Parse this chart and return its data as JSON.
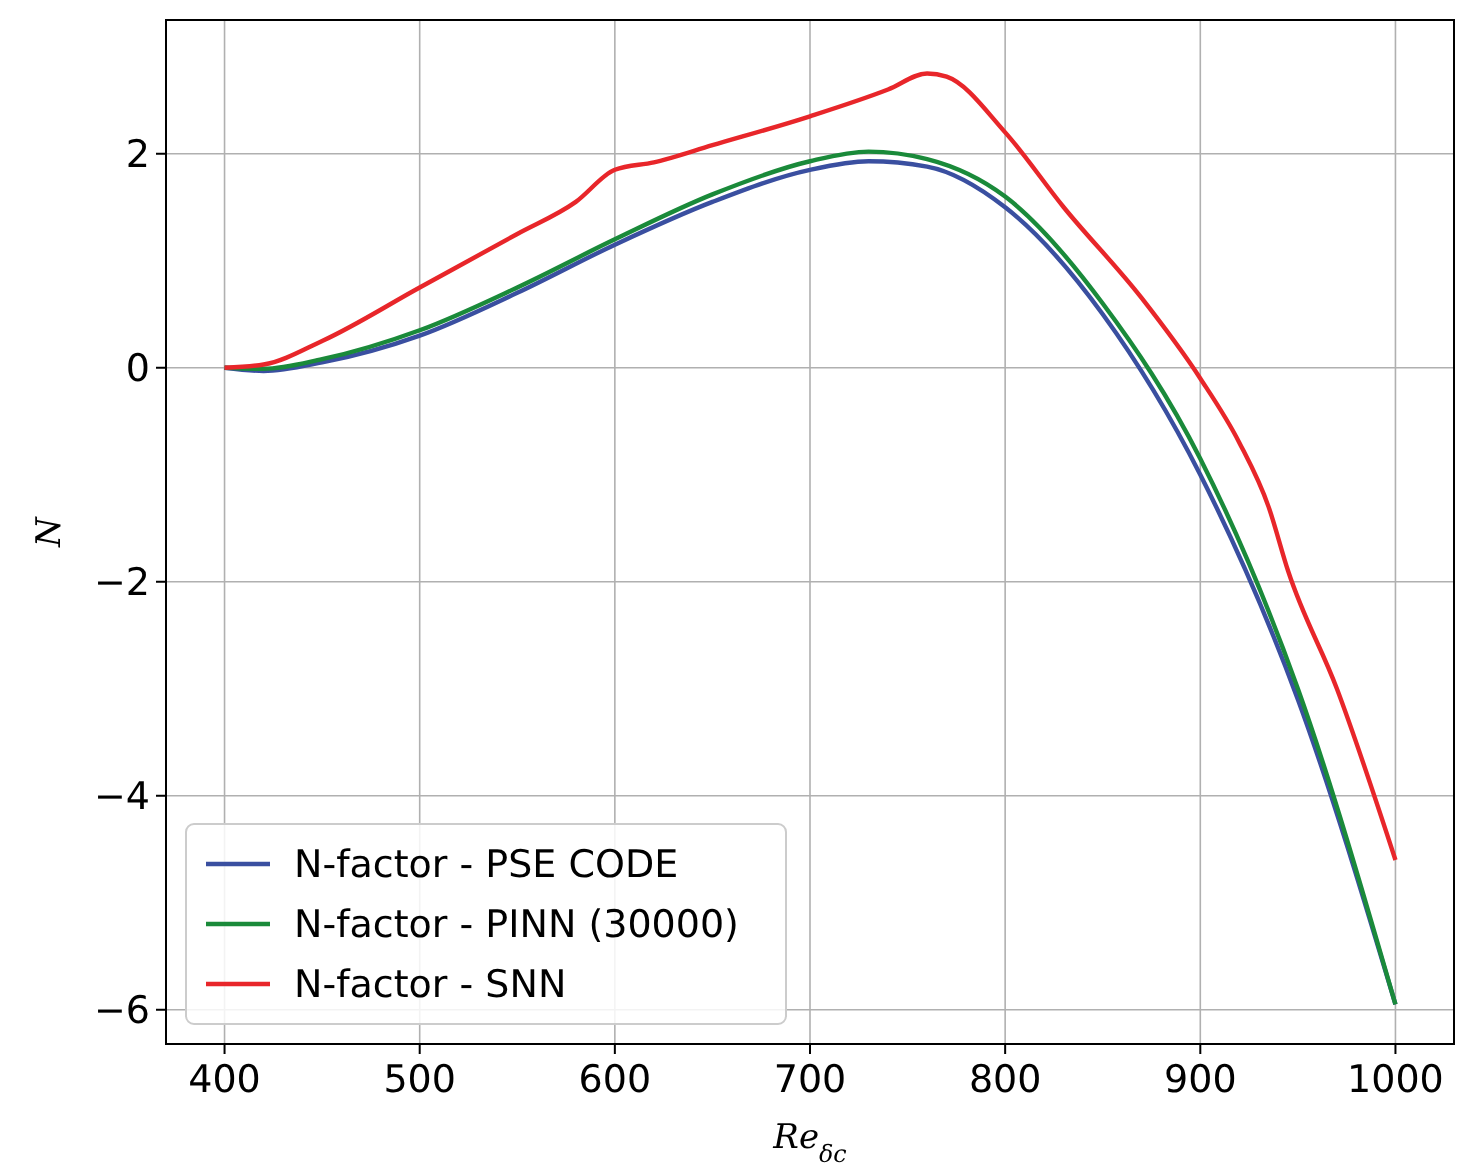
{
  "chart_data": {
    "type": "line",
    "xlabel": "Re$_{δc}$",
    "ylabel": "N",
    "xlim": [
      370,
      1030
    ],
    "ylim": [
      -6.32,
      3.25
    ],
    "xticks": [
      400,
      500,
      600,
      700,
      800,
      900,
      1000
    ],
    "yticks": [
      -6,
      -4,
      -2,
      0,
      2
    ],
    "grid": true,
    "legend": "bottom left",
    "marker": "none",
    "line_style": "solid",
    "series": [
      {
        "name": "N-factor - PSE CODE",
        "color": "#3a4fa0",
        "x": [
          400,
          420,
          450,
          500,
          550,
          600,
          650,
          700,
          730,
          760,
          800,
          850,
          900,
          950,
          1000
        ],
        "values": [
          0,
          -0.03,
          0.05,
          0.3,
          0.7,
          1.15,
          1.55,
          1.85,
          1.93,
          1.88,
          1.5,
          0.5,
          -1.0,
          -3.1,
          -5.95
        ]
      },
      {
        "name": "N-factor - PINN (30000)",
        "color": "#1a8a3a",
        "x": [
          400,
          420,
          450,
          500,
          550,
          600,
          650,
          700,
          730,
          760,
          800,
          850,
          900,
          950,
          1000
        ],
        "values": [
          0,
          -0.01,
          0.08,
          0.35,
          0.75,
          1.2,
          1.62,
          1.93,
          2.02,
          1.95,
          1.6,
          0.6,
          -0.85,
          -3.0,
          -5.95
        ]
      },
      {
        "name": "N-factor - SNN",
        "color": "#e8262a",
        "x": [
          400,
          420,
          450,
          500,
          550,
          580,
          600,
          620,
          650,
          700,
          740,
          760,
          770,
          800,
          830,
          870,
          900,
          920,
          935,
          945,
          970,
          1000
        ],
        "values": [
          0,
          0.03,
          0.25,
          0.75,
          1.25,
          1.55,
          1.85,
          1.92,
          2.08,
          2.35,
          2.6,
          2.75,
          2.72,
          2.2,
          1.5,
          0.65,
          -0.1,
          -0.7,
          -1.3,
          -1.9,
          -3.0,
          -4.6
        ]
      }
    ]
  }
}
